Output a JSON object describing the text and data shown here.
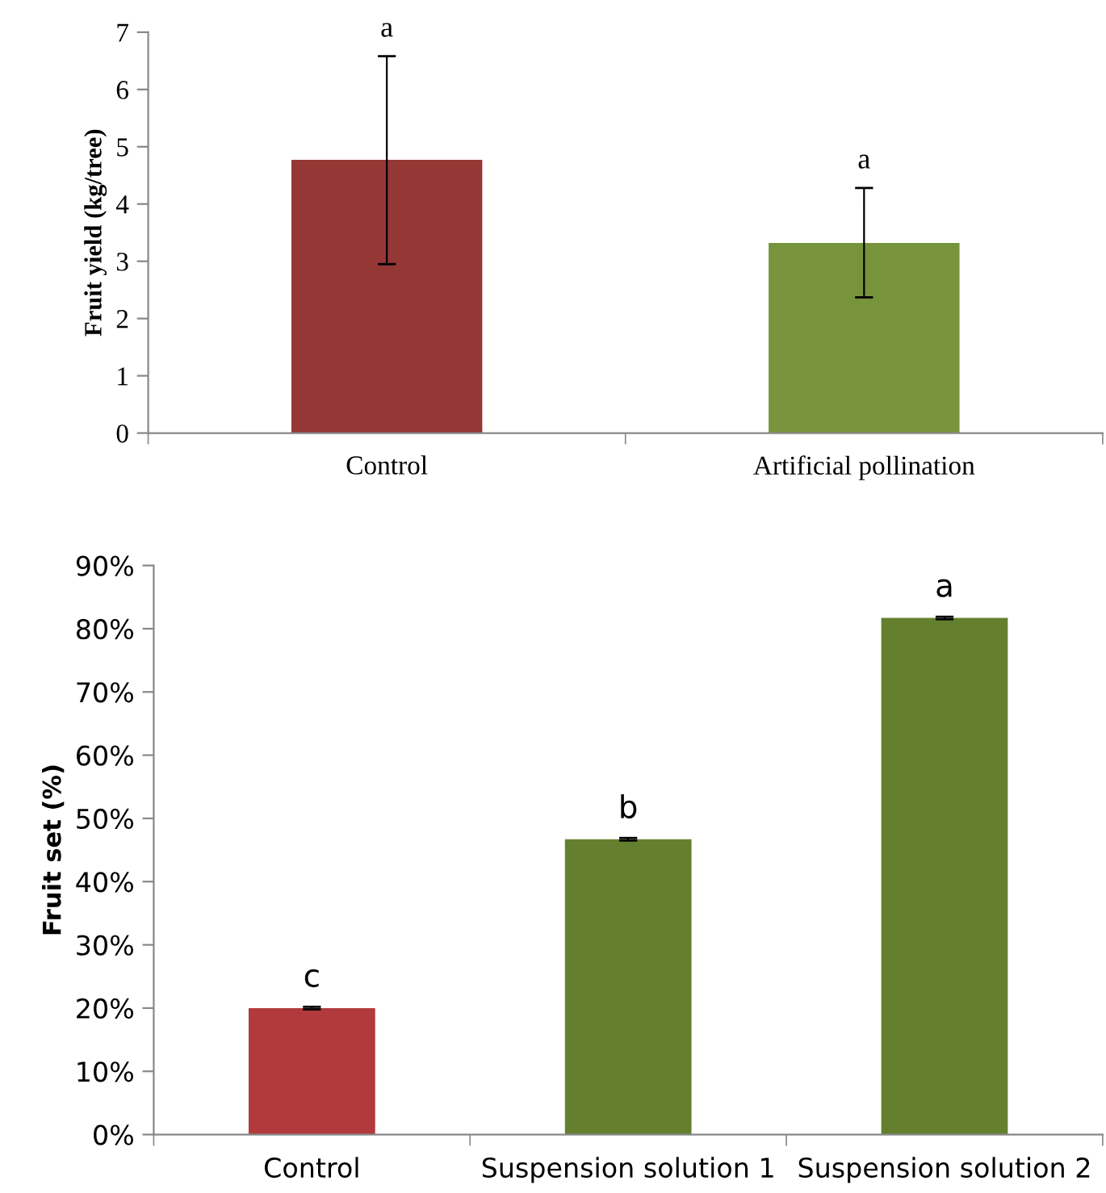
{
  "chart_data": [
    {
      "type": "bar",
      "ylabel": "Fruit yield (kg/tree)",
      "categories": [
        "Control",
        "Artificial pollination"
      ],
      "values": [
        4.77,
        3.32
      ],
      "colors": [
        "#953735",
        "#77933c"
      ],
      "errors": [
        [
          2.95,
          6.58
        ],
        [
          2.37,
          4.28
        ]
      ],
      "ylim": [
        0,
        7
      ],
      "yticks": [
        0,
        1,
        2,
        3,
        4,
        5,
        6,
        7
      ],
      "grid": false,
      "legend": false,
      "annotations": [
        {
          "text": "a",
          "x": "Control",
          "y": 6.58
        },
        {
          "text": "a",
          "x": "Artificial pollination",
          "y": 4.28
        }
      ]
    },
    {
      "type": "bar",
      "ylabel": "Fruit set (%)",
      "categories": [
        "Control",
        "Suspension solution 1",
        "Suspension solution 2"
      ],
      "values": [
        20,
        46.7,
        81.7
      ],
      "colors": [
        "#b23a3c",
        "#64802e",
        "#64802e"
      ],
      "errors": [
        0.2,
        0.2,
        0.2
      ],
      "ylim": [
        0,
        90
      ],
      "yticks": [
        {
          "value": 0,
          "label": "0%"
        },
        {
          "value": 10,
          "label": "10%"
        },
        {
          "value": 20,
          "label": "20%"
        },
        {
          "value": 30,
          "label": "30%"
        },
        {
          "value": 40,
          "label": "40%"
        },
        {
          "value": 50,
          "label": "50%"
        },
        {
          "value": 60,
          "label": "60%"
        },
        {
          "value": 70,
          "label": "70%"
        },
        {
          "value": 80,
          "label": "80%"
        },
        {
          "value": 90,
          "label": "90%"
        }
      ],
      "grid": false,
      "legend": false,
      "annotations": [
        {
          "text": "c",
          "x": "Control",
          "y": 20.2
        },
        {
          "text": "b",
          "x": "Suspension solution 1",
          "y": 46.9
        },
        {
          "text": "a",
          "x": "Suspension solution 2",
          "y": 81.9
        }
      ]
    }
  ]
}
